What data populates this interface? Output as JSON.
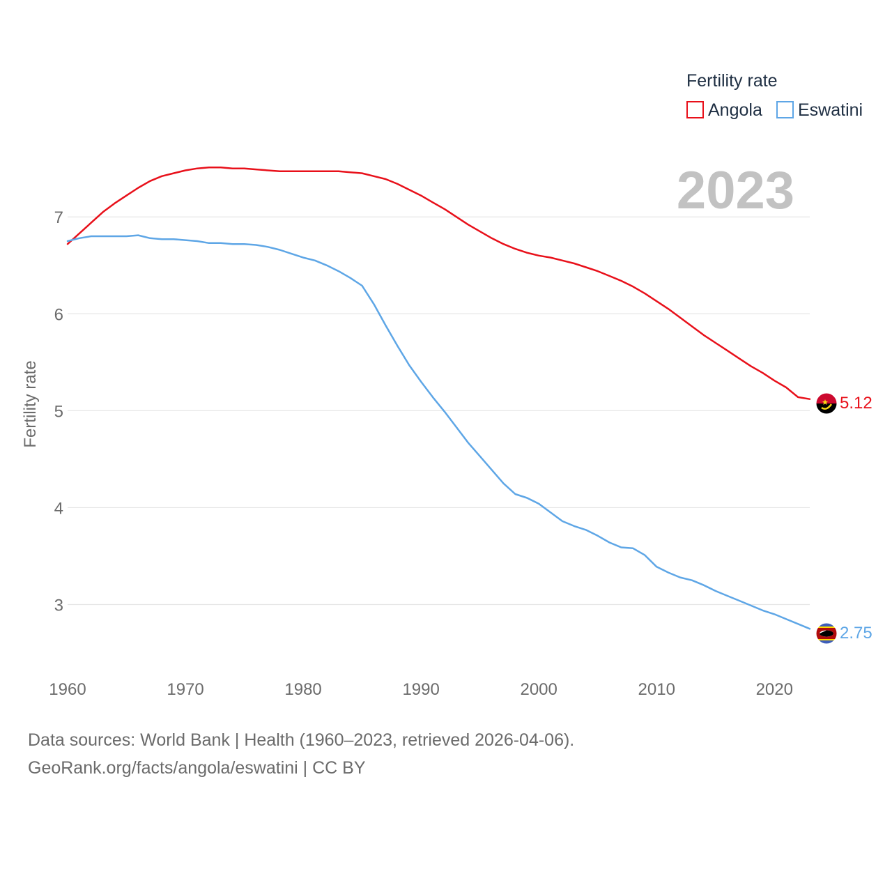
{
  "chart_data": {
    "type": "line",
    "title": "",
    "legend_title": "Fertility rate",
    "year_label": "2023",
    "xlabel": "",
    "ylabel": "Fertility rate",
    "xlim": [
      1960,
      2023
    ],
    "ylim": [
      2.45,
      7.85
    ],
    "xticks": [
      1960,
      1970,
      1980,
      1990,
      2000,
      2010,
      2020
    ],
    "yticks": [
      3,
      4,
      5,
      6,
      7
    ],
    "legend_position": "top-right",
    "x": [
      1960,
      1961,
      1962,
      1963,
      1964,
      1965,
      1966,
      1967,
      1968,
      1969,
      1970,
      1971,
      1972,
      1973,
      1974,
      1975,
      1976,
      1977,
      1978,
      1979,
      1980,
      1981,
      1982,
      1983,
      1984,
      1985,
      1986,
      1987,
      1988,
      1989,
      1990,
      1991,
      1992,
      1993,
      1994,
      1995,
      1996,
      1997,
      1998,
      1999,
      2000,
      2001,
      2002,
      2003,
      2004,
      2005,
      2006,
      2007,
      2008,
      2009,
      2010,
      2011,
      2012,
      2013,
      2014,
      2015,
      2016,
      2017,
      2018,
      2019,
      2020,
      2021,
      2022,
      2023
    ],
    "series": [
      {
        "name": "Angola",
        "color": "#e8101a",
        "end_label": "5.12",
        "flag": "angola-flag",
        "values": [
          6.72,
          6.83,
          6.94,
          7.05,
          7.14,
          7.22,
          7.3,
          7.37,
          7.42,
          7.45,
          7.48,
          7.5,
          7.51,
          7.51,
          7.5,
          7.5,
          7.49,
          7.48,
          7.47,
          7.47,
          7.47,
          7.47,
          7.47,
          7.47,
          7.46,
          7.45,
          7.42,
          7.39,
          7.34,
          7.28,
          7.22,
          7.15,
          7.08,
          7.0,
          6.92,
          6.85,
          6.78,
          6.72,
          6.67,
          6.63,
          6.6,
          6.58,
          6.55,
          6.52,
          6.48,
          6.44,
          6.39,
          6.34,
          6.28,
          6.21,
          6.13,
          6.05,
          5.96,
          5.87,
          5.78,
          5.7,
          5.62,
          5.54,
          5.46,
          5.39,
          5.31,
          5.24,
          5.14,
          5.12
        ]
      },
      {
        "name": "Eswatini",
        "color": "#5ea6e6",
        "end_label": "2.75",
        "flag": "eswatini-flag",
        "values": [
          6.75,
          6.78,
          6.8,
          6.8,
          6.8,
          6.8,
          6.81,
          6.78,
          6.77,
          6.77,
          6.76,
          6.75,
          6.73,
          6.73,
          6.72,
          6.72,
          6.71,
          6.69,
          6.66,
          6.62,
          6.58,
          6.55,
          6.5,
          6.44,
          6.37,
          6.29,
          6.1,
          5.88,
          5.67,
          5.47,
          5.3,
          5.14,
          4.99,
          4.83,
          4.67,
          4.53,
          4.39,
          4.25,
          4.14,
          4.1,
          4.04,
          3.95,
          3.86,
          3.81,
          3.77,
          3.71,
          3.64,
          3.59,
          3.58,
          3.51,
          3.39,
          3.33,
          3.28,
          3.25,
          3.2,
          3.14,
          3.09,
          3.04,
          2.99,
          2.94,
          2.9,
          2.85,
          2.8,
          2.75
        ]
      }
    ]
  },
  "footer": {
    "sources": "Data sources: World Bank | Health (1960–2023, retrieved 2026-04-06).",
    "credit": "GeoRank.org/facts/angola/eswatini | CC BY"
  }
}
